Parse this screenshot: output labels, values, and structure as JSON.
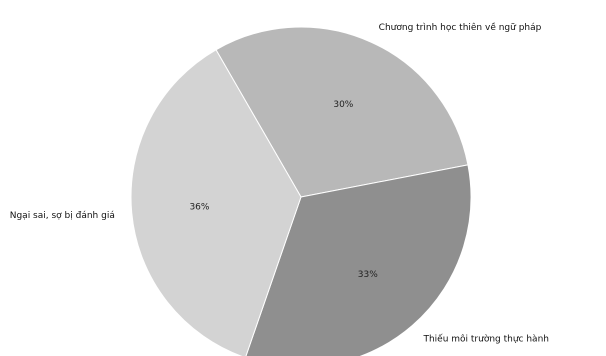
{
  "chart_data": {
    "type": "pie",
    "title": "",
    "slices": [
      {
        "label": "Chương trình học thiên về ngữ pháp",
        "value": 30,
        "display": "30%",
        "color": "#b8b8b8"
      },
      {
        "label": "Thiếu môi trường thực hành",
        "value": 33,
        "display": "33%",
        "color": "#8f8f8f"
      },
      {
        "label": "Ngại sai, sợ bị đánh giá",
        "value": 36,
        "display": "36%",
        "color": "#d3d3d3"
      }
    ],
    "start_angle_deg": -120,
    "direction": "clockwise",
    "grid": false,
    "legend": "none"
  }
}
